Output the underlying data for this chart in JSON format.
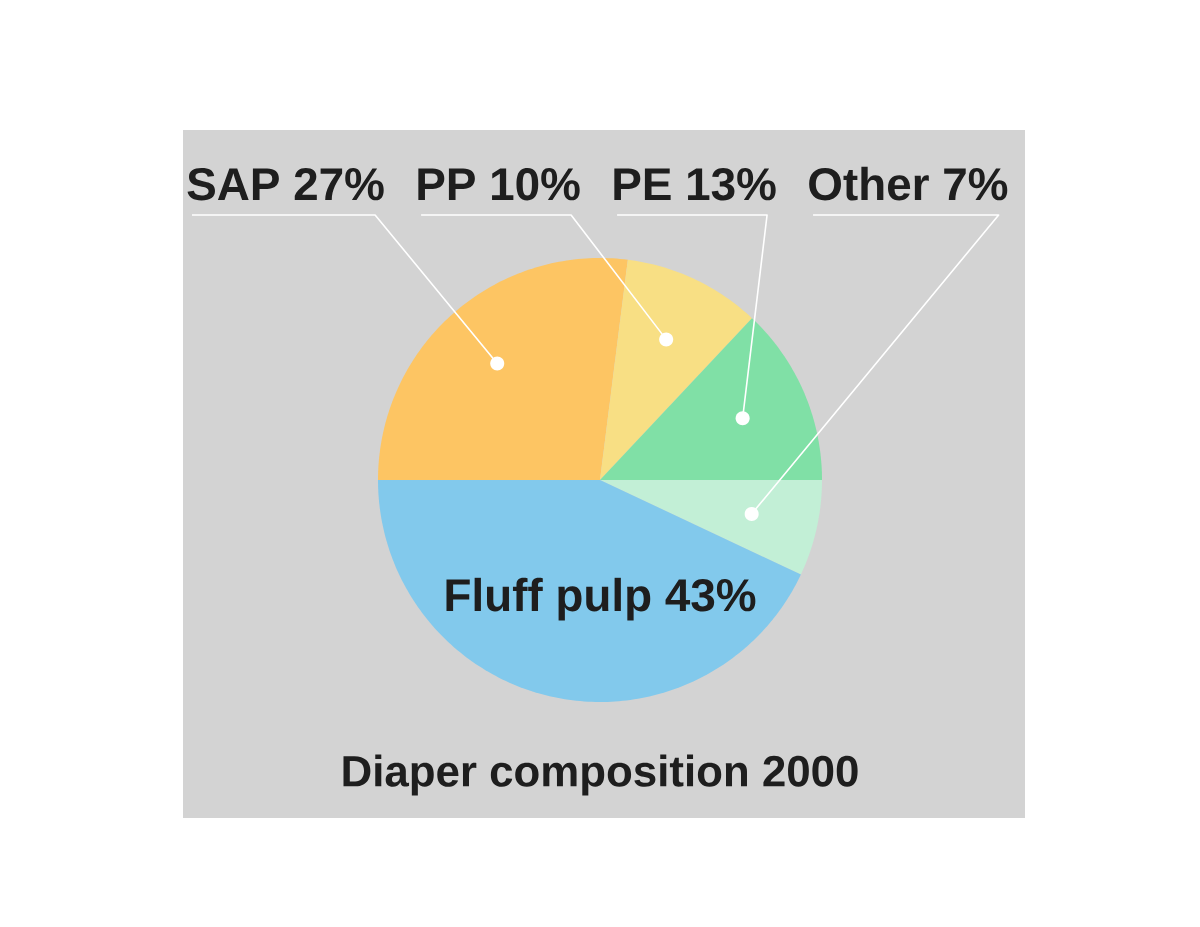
{
  "chart_data": {
    "type": "pie",
    "title": "Diaper composition 2000",
    "categories": [
      "SAP",
      "PP",
      "PE",
      "Other",
      "Fluff pulp"
    ],
    "values": [
      27,
      10,
      13,
      7,
      43
    ],
    "value_labels": [
      "27%",
      "10%",
      "13%",
      "7%",
      "43%"
    ],
    "colors": [
      "#fdc563",
      "#f8df84",
      "#80e0a6",
      "#c2efd6",
      "#82c9ec"
    ]
  }
}
